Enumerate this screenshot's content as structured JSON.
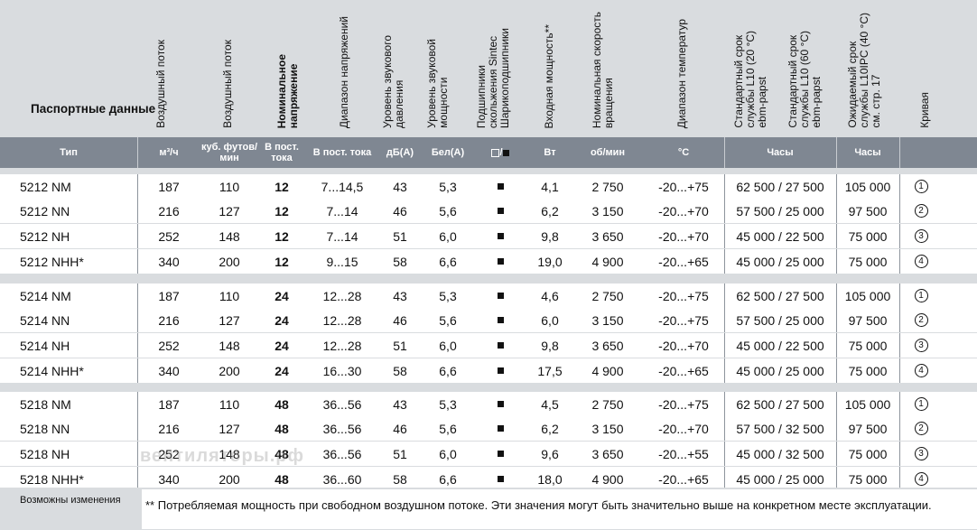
{
  "header": {
    "title": "Паспортные данные",
    "columns": [
      {
        "key": "type",
        "vertical": "",
        "unit": "Тип"
      },
      {
        "key": "flow_m3",
        "vertical": "Воздушный поток",
        "unit": "м³/ч"
      },
      {
        "key": "flow_cfm",
        "vertical": "Воздушный поток",
        "unit": "куб. футов/ мин"
      },
      {
        "key": "voltage",
        "vertical": "Номинальное\nнапряжение",
        "unit": "В пост. тока",
        "bold": true
      },
      {
        "key": "vrange",
        "vertical": "Диапазон напряжений",
        "unit": "В пост. тока"
      },
      {
        "key": "spl",
        "vertical": "Уровень звукового\nдавления",
        "unit": "дБ(А)"
      },
      {
        "key": "swl",
        "vertical": "Уровень звуковой\nмощности",
        "unit": "Бел(А)"
      },
      {
        "key": "bearing",
        "vertical": "Подшипники\nскольжения Sintec\nШарикоподшипники",
        "unit": "□/■"
      },
      {
        "key": "power",
        "vertical": "Входная мощность**",
        "unit": "Вт"
      },
      {
        "key": "speed",
        "vertical": "Номинальная скорость\nвращения",
        "unit": "об/мин"
      },
      {
        "key": "temp",
        "vertical": "Диапазон температур",
        "unit": "°C"
      },
      {
        "key": "life1",
        "vertical": "Стандартный срок\nслужбы L10 (20 °C)\nebm-papst",
        "vertical2": "Стандартный срок\nслужбы L10 (60 °C)\nebm-papst",
        "unit": "Часы"
      },
      {
        "key": "life2",
        "vertical": "Ожидаемый срок\nслужбы L10IPC (40 °C)\nсм. стр. 17",
        "unit": "Часы"
      },
      {
        "key": "curve",
        "vertical": "Кривая",
        "unit": ""
      }
    ]
  },
  "groups": [
    [
      {
        "type": "5212 NM",
        "flow_m3": "187",
        "flow_cfm": "110",
        "voltage": "12",
        "vrange": "7...14,5",
        "spl": "43",
        "swl": "5,3",
        "power": "4,1",
        "speed": "2 750",
        "temp": "-20...+75",
        "life1": "62 500 / 27 500",
        "life2": "105 000",
        "curve": "1"
      },
      {
        "type": "5212 NN",
        "flow_m3": "216",
        "flow_cfm": "127",
        "voltage": "12",
        "vrange": "7...14",
        "spl": "46",
        "swl": "5,6",
        "power": "6,2",
        "speed": "3 150",
        "temp": "-20...+70",
        "life1": "57 500 / 25 000",
        "life2": "97 500",
        "curve": "2"
      },
      {
        "type": "5212 NH",
        "flow_m3": "252",
        "flow_cfm": "148",
        "voltage": "12",
        "vrange": "7...14",
        "spl": "51",
        "swl": "6,0",
        "power": "9,8",
        "speed": "3 650",
        "temp": "-20...+70",
        "life1": "45 000 / 22 500",
        "life2": "75 000",
        "curve": "3"
      },
      {
        "type": "5212 NHH*",
        "flow_m3": "340",
        "flow_cfm": "200",
        "voltage": "12",
        "vrange": "9...15",
        "spl": "58",
        "swl": "6,6",
        "power": "19,0",
        "speed": "4 900",
        "temp": "-20...+65",
        "life1": "45 000 / 25 000",
        "life2": "75 000",
        "curve": "4"
      }
    ],
    [
      {
        "type": "5214 NM",
        "flow_m3": "187",
        "flow_cfm": "110",
        "voltage": "24",
        "vrange": "12...28",
        "spl": "43",
        "swl": "5,3",
        "power": "4,6",
        "speed": "2 750",
        "temp": "-20...+75",
        "life1": "62 500 / 27 500",
        "life2": "105 000",
        "curve": "1"
      },
      {
        "type": "5214 NN",
        "flow_m3": "216",
        "flow_cfm": "127",
        "voltage": "24",
        "vrange": "12...28",
        "spl": "46",
        "swl": "5,6",
        "power": "6,0",
        "speed": "3 150",
        "temp": "-20...+75",
        "life1": "57 500 / 25 000",
        "life2": "97 500",
        "curve": "2"
      },
      {
        "type": "5214 NH",
        "flow_m3": "252",
        "flow_cfm": "148",
        "voltage": "24",
        "vrange": "12...28",
        "spl": "51",
        "swl": "6,0",
        "power": "9,8",
        "speed": "3 650",
        "temp": "-20...+70",
        "life1": "45 000 / 22 500",
        "life2": "75 000",
        "curve": "3"
      },
      {
        "type": "5214 NHH*",
        "flow_m3": "340",
        "flow_cfm": "200",
        "voltage": "24",
        "vrange": "16...30",
        "spl": "58",
        "swl": "6,6",
        "power": "17,5",
        "speed": "4 900",
        "temp": "-20...+65",
        "life1": "45 000 / 25 000",
        "life2": "75 000",
        "curve": "4"
      }
    ],
    [
      {
        "type": "5218 NM",
        "flow_m3": "187",
        "flow_cfm": "110",
        "voltage": "48",
        "vrange": "36...56",
        "spl": "43",
        "swl": "5,3",
        "power": "4,5",
        "speed": "2 750",
        "temp": "-20...+75",
        "life1": "62 500 / 27 500",
        "life2": "105 000",
        "curve": "1"
      },
      {
        "type": "5218 NN",
        "flow_m3": "216",
        "flow_cfm": "127",
        "voltage": "48",
        "vrange": "36...56",
        "spl": "46",
        "swl": "5,6",
        "power": "6,2",
        "speed": "3 150",
        "temp": "-20...+70",
        "life1": "57 500 / 32 500",
        "life2": "97 500",
        "curve": "2"
      },
      {
        "type": "5218 NH",
        "flow_m3": "252",
        "flow_cfm": "148",
        "voltage": "48",
        "vrange": "36...56",
        "spl": "51",
        "swl": "6,0",
        "power": "9,6",
        "speed": "3 650",
        "temp": "-20...+55",
        "life1": "45 000 / 32 500",
        "life2": "75 000",
        "curve": "3"
      },
      {
        "type": "5218 NHH*",
        "flow_m3": "340",
        "flow_cfm": "200",
        "voltage": "48",
        "vrange": "36...60",
        "spl": "58",
        "swl": "6,6",
        "power": "18,0",
        "speed": "4 900",
        "temp": "-20...+65",
        "life1": "45 000 / 25 000",
        "life2": "75 000",
        "curve": "4"
      }
    ]
  ],
  "curve_symbols": {
    "1": "①",
    "2": "②",
    "3": "③",
    "4": "④"
  },
  "bearing_symbol": "■",
  "footer": {
    "left": "Возможны изменения",
    "note": "** Потребляемая мощность при свободном воздушном потоке. Эти значения могут быть значительно выше на конкретном месте эксплуатации."
  },
  "watermark": "вентиляторы.рф"
}
